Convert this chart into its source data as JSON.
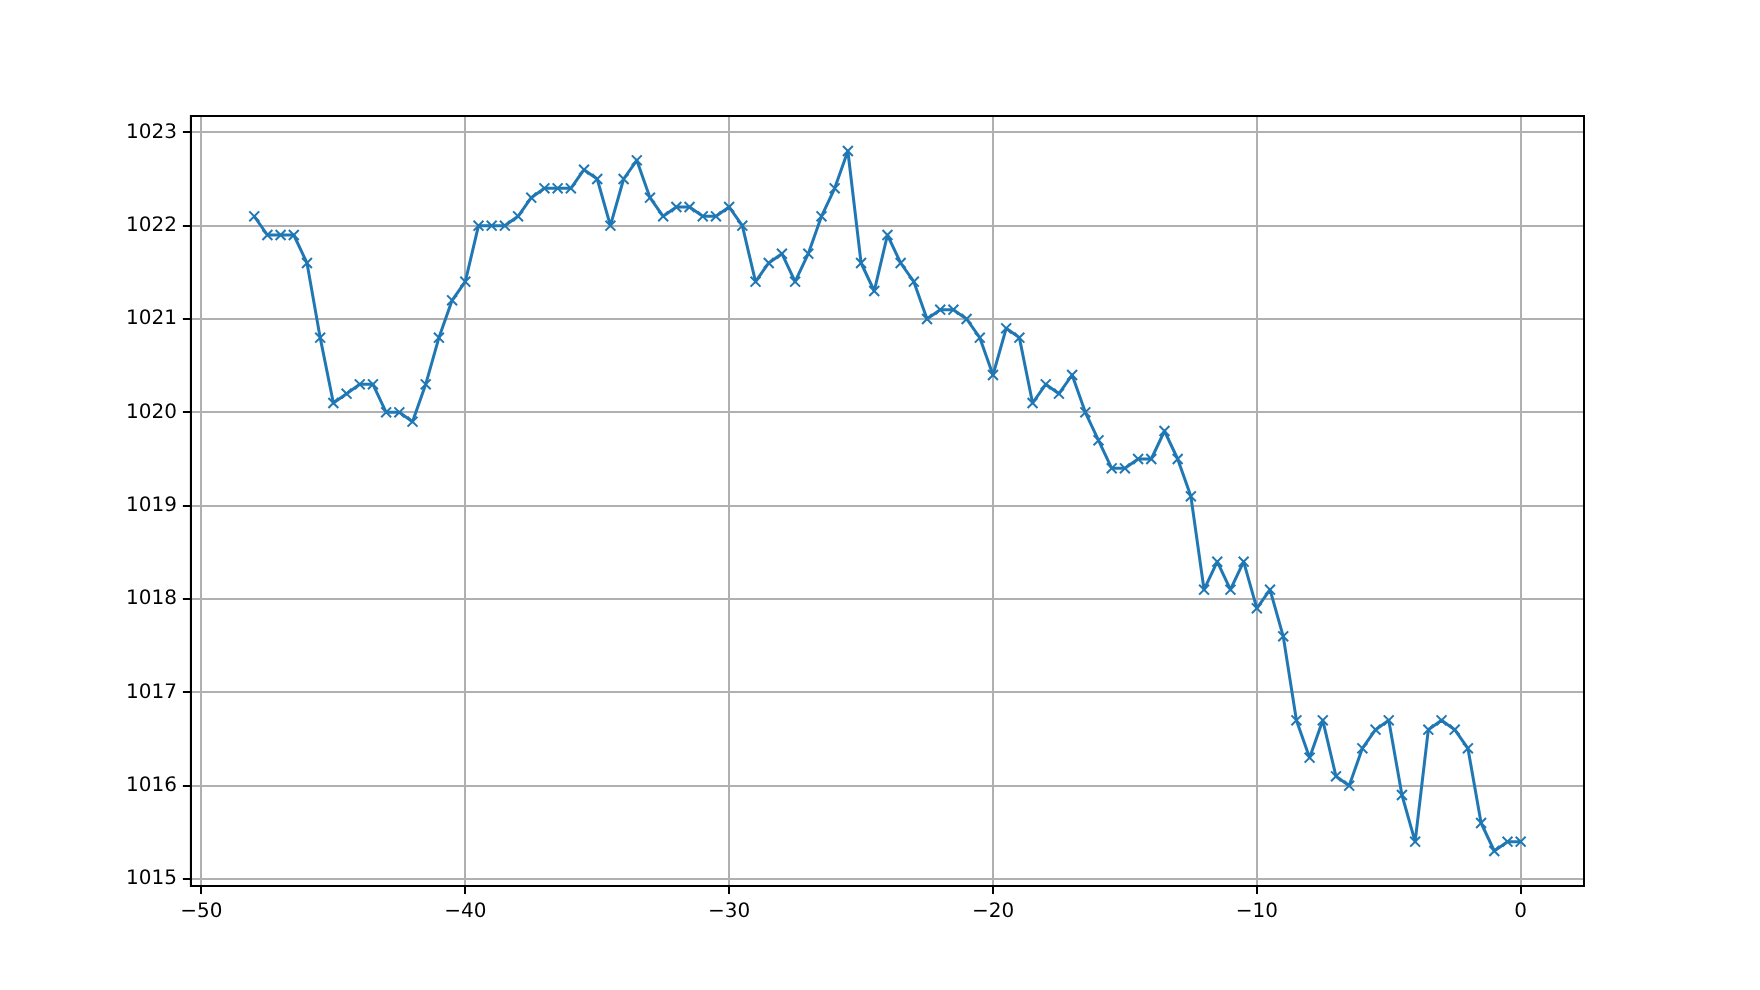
{
  "chart_data": {
    "type": "line",
    "x": [
      -48,
      -47.5,
      -47,
      -46.5,
      -46,
      -45.5,
      -45,
      -44.5,
      -44,
      -43.5,
      -43,
      -42.5,
      -42,
      -41.5,
      -41,
      -40.5,
      -40,
      -39.5,
      -39,
      -38.5,
      -38,
      -37.5,
      -37,
      -36.5,
      -36,
      -35.5,
      -35,
      -34.5,
      -34,
      -33.5,
      -33,
      -32.5,
      -32,
      -31.5,
      -31,
      -30.5,
      -30,
      -29.5,
      -29,
      -28.5,
      -28,
      -27.5,
      -27,
      -26.5,
      -26,
      -25.5,
      -25,
      -24.5,
      -24,
      -23.5,
      -23,
      -22.5,
      -22,
      -21.5,
      -21,
      -20.5,
      -20,
      -19.5,
      -19,
      -18.5,
      -18,
      -17.5,
      -17,
      -16.5,
      -16,
      -15.5,
      -15,
      -14.5,
      -14,
      -13.5,
      -13,
      -12.5,
      -12,
      -11.5,
      -11,
      -10.5,
      -10,
      -9.5,
      -9,
      -8.5,
      -8,
      -7.5,
      -7,
      -6.5,
      -6,
      -5.5,
      -5,
      -4.5,
      -4,
      -3.5,
      -3,
      -2.5,
      -2,
      -1.5,
      -1,
      -0.5,
      0
    ],
    "series": [
      {
        "color": "#1f77b4",
        "values": [
          1022.1,
          1021.9,
          1021.9,
          1021.9,
          1021.6,
          1020.8,
          1020.1,
          1020.2,
          1020.3,
          1020.3,
          1020.0,
          1020.0,
          1019.9,
          1020.3,
          1020.8,
          1021.2,
          1021.4,
          1022.0,
          1022.0,
          1022.0,
          1022.1,
          1022.3,
          1022.4,
          1022.4,
          1022.4,
          1022.6,
          1022.5,
          1022.0,
          1022.5,
          1022.7,
          1022.3,
          1022.1,
          1022.2,
          1022.2,
          1022.1,
          1022.1,
          1022.2,
          1022.0,
          1021.4,
          1021.6,
          1021.7,
          1021.4,
          1021.7,
          1022.1,
          1022.4,
          1022.8,
          1021.6,
          1021.3,
          1021.9,
          1021.6,
          1021.4,
          1021.0,
          1021.1,
          1021.1,
          1021.0,
          1020.8,
          1020.4,
          1020.9,
          1020.8,
          1020.1,
          1020.3,
          1020.2,
          1020.4,
          1020.0,
          1019.7,
          1019.4,
          1019.4,
          1019.5,
          1019.5,
          1019.8,
          1019.5,
          1019.1,
          1018.1,
          1018.4,
          1018.1,
          1018.4,
          1017.9,
          1018.1,
          1017.6,
          1016.7,
          1016.3,
          1016.7,
          1016.1,
          1016.0,
          1016.4,
          1016.6,
          1016.7,
          1015.9,
          1015.4,
          1016.6,
          1016.7,
          1016.6,
          1016.4,
          1015.6,
          1015.3,
          1015.4,
          1015.4
        ]
      }
    ],
    "xlim": [
      -50.4,
      2.4
    ],
    "ylim": [
      1014.925,
      1023.175
    ],
    "xticks": [
      -50,
      -40,
      -30,
      -20,
      -10,
      0
    ],
    "yticks": [
      1015,
      1016,
      1017,
      1018,
      1019,
      1020,
      1021,
      1022,
      1023
    ],
    "grid": true,
    "marker": "cross",
    "line_style": "solid"
  }
}
